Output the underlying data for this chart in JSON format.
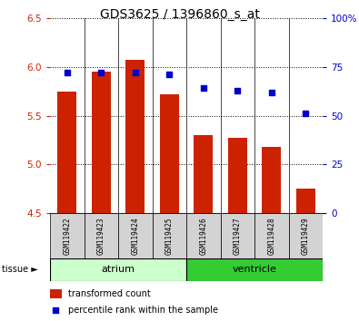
{
  "title": "GDS3625 / 1396860_s_at",
  "samples": [
    "GSM119422",
    "GSM119423",
    "GSM119424",
    "GSM119425",
    "GSM119426",
    "GSM119427",
    "GSM119428",
    "GSM119429"
  ],
  "transformed_count": [
    5.75,
    5.95,
    6.07,
    5.72,
    5.3,
    5.27,
    5.18,
    4.75
  ],
  "percentile_rank": [
    72,
    72,
    72,
    71,
    64,
    63,
    62,
    51
  ],
  "ylim_left": [
    4.5,
    6.5
  ],
  "ylim_right": [
    0,
    100
  ],
  "yticks_left": [
    4.5,
    5.0,
    5.5,
    6.0,
    6.5
  ],
  "yticks_right": [
    0,
    25,
    50,
    75,
    100
  ],
  "ytick_labels_right": [
    "0",
    "25",
    "50",
    "75",
    "100%"
  ],
  "bar_color": "#cc2200",
  "dot_color": "#0000cc",
  "bar_bottom": 4.5,
  "groups": [
    {
      "label": "atrium",
      "start": 0,
      "end": 4,
      "color": "#ccffcc"
    },
    {
      "label": "ventricle",
      "start": 4,
      "end": 8,
      "color": "#33cc33"
    }
  ],
  "left_tick_color": "#cc2200",
  "right_tick_color": "#0000cc",
  "legend_bar_label": "transformed count",
  "legend_dot_label": "percentile rank within the sample"
}
